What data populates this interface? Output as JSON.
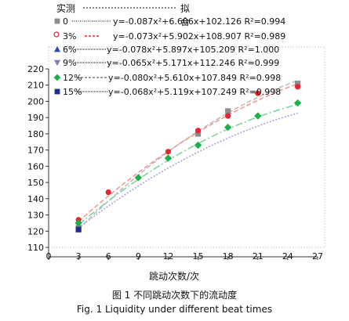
{
  "legend_header": {
    "left": "实测",
    "right": "拟合"
  },
  "legend": [
    {
      "marker": "square",
      "color": "#8c8c8c",
      "line_color": "#bdbdbd",
      "label": "0",
      "equation": "y=-0.087x²+6.606x+102.126 R²=0.994"
    },
    {
      "marker": "circle",
      "color": "#e8242e",
      "line_color": "#f39a9a",
      "label": "3%",
      "equation": "y=-0.073x²+5.902x+108.907 R²=0.989"
    },
    {
      "marker": "triangle-up",
      "color": "#2b4ea8",
      "line_color": "#8aa0d6",
      "label": "6%",
      "equation": "y=-0.078x²+5.897x+105.209 R²=1.000"
    },
    {
      "marker": "triangle-down",
      "color": "#8a7bbd",
      "line_color": "#b7aede",
      "label": "9%",
      "equation": "y=-0.065x²+5.171x+112.246 R²=0.999"
    },
    {
      "marker": "diamond",
      "color": "#1fae4a",
      "line_color": "#7fd69a",
      "label": "12%",
      "equation": "y=-0.080x²+5.610x+107.849 R²=0.998"
    },
    {
      "marker": "square",
      "color": "#1f2f8f",
      "line_color": "#a7a3df",
      "label": "15%",
      "equation": "y=-0.068x²+5.119x+107.249 R²=0.998"
    }
  ],
  "chart_data": {
    "type": "scatter",
    "xlabel": "跳动次数/次",
    "ylabel": "",
    "xlim": [
      0,
      27
    ],
    "ylim": [
      110,
      220
    ],
    "x_ticks": [
      0,
      3,
      6,
      9,
      12,
      15,
      18,
      21,
      24,
      27
    ],
    "y_ticks": [
      110,
      120,
      130,
      140,
      150,
      160,
      170,
      180,
      190,
      200,
      210,
      220
    ],
    "series": [
      {
        "name": "0",
        "marker": "square",
        "color": "#8c8c8c",
        "line": "#bdbdbd",
        "fit": [
          -0.087,
          6.606,
          102.126
        ],
        "points": [
          [
            3,
            122
          ],
          [
            15,
            180
          ],
          [
            18,
            194
          ],
          [
            25,
            211
          ]
        ]
      },
      {
        "name": "3%",
        "marker": "circle",
        "color": "#e8242e",
        "line": "#f39a9a",
        "fit": [
          -0.073,
          5.902,
          108.907
        ],
        "points": [
          [
            3,
            127
          ],
          [
            6,
            144
          ],
          [
            12,
            169
          ],
          [
            15,
            182
          ],
          [
            18,
            191
          ],
          [
            21,
            205
          ],
          [
            25,
            209
          ]
        ]
      },
      {
        "name": "12%",
        "marker": "diamond",
        "color": "#1fae4a",
        "line": "#7fd69a",
        "fit": [
          -0.08,
          5.61,
          107.849
        ],
        "points": [
          [
            3,
            125
          ],
          [
            9,
            153
          ],
          [
            12,
            165
          ],
          [
            15,
            173
          ],
          [
            18,
            184
          ],
          [
            21,
            191
          ],
          [
            25,
            199
          ]
        ]
      },
      {
        "name": "15%",
        "marker": "square",
        "color": "#1f2f8f",
        "line": "#a7a3df",
        "fit": [
          -0.068,
          5.119,
          107.249
        ],
        "points": [
          [
            3,
            121
          ]
        ]
      }
    ]
  },
  "caption_zh": "图 1    不同跳动次数下的流动度",
  "caption_en": "Fig. 1    Liquidity under different beat times"
}
